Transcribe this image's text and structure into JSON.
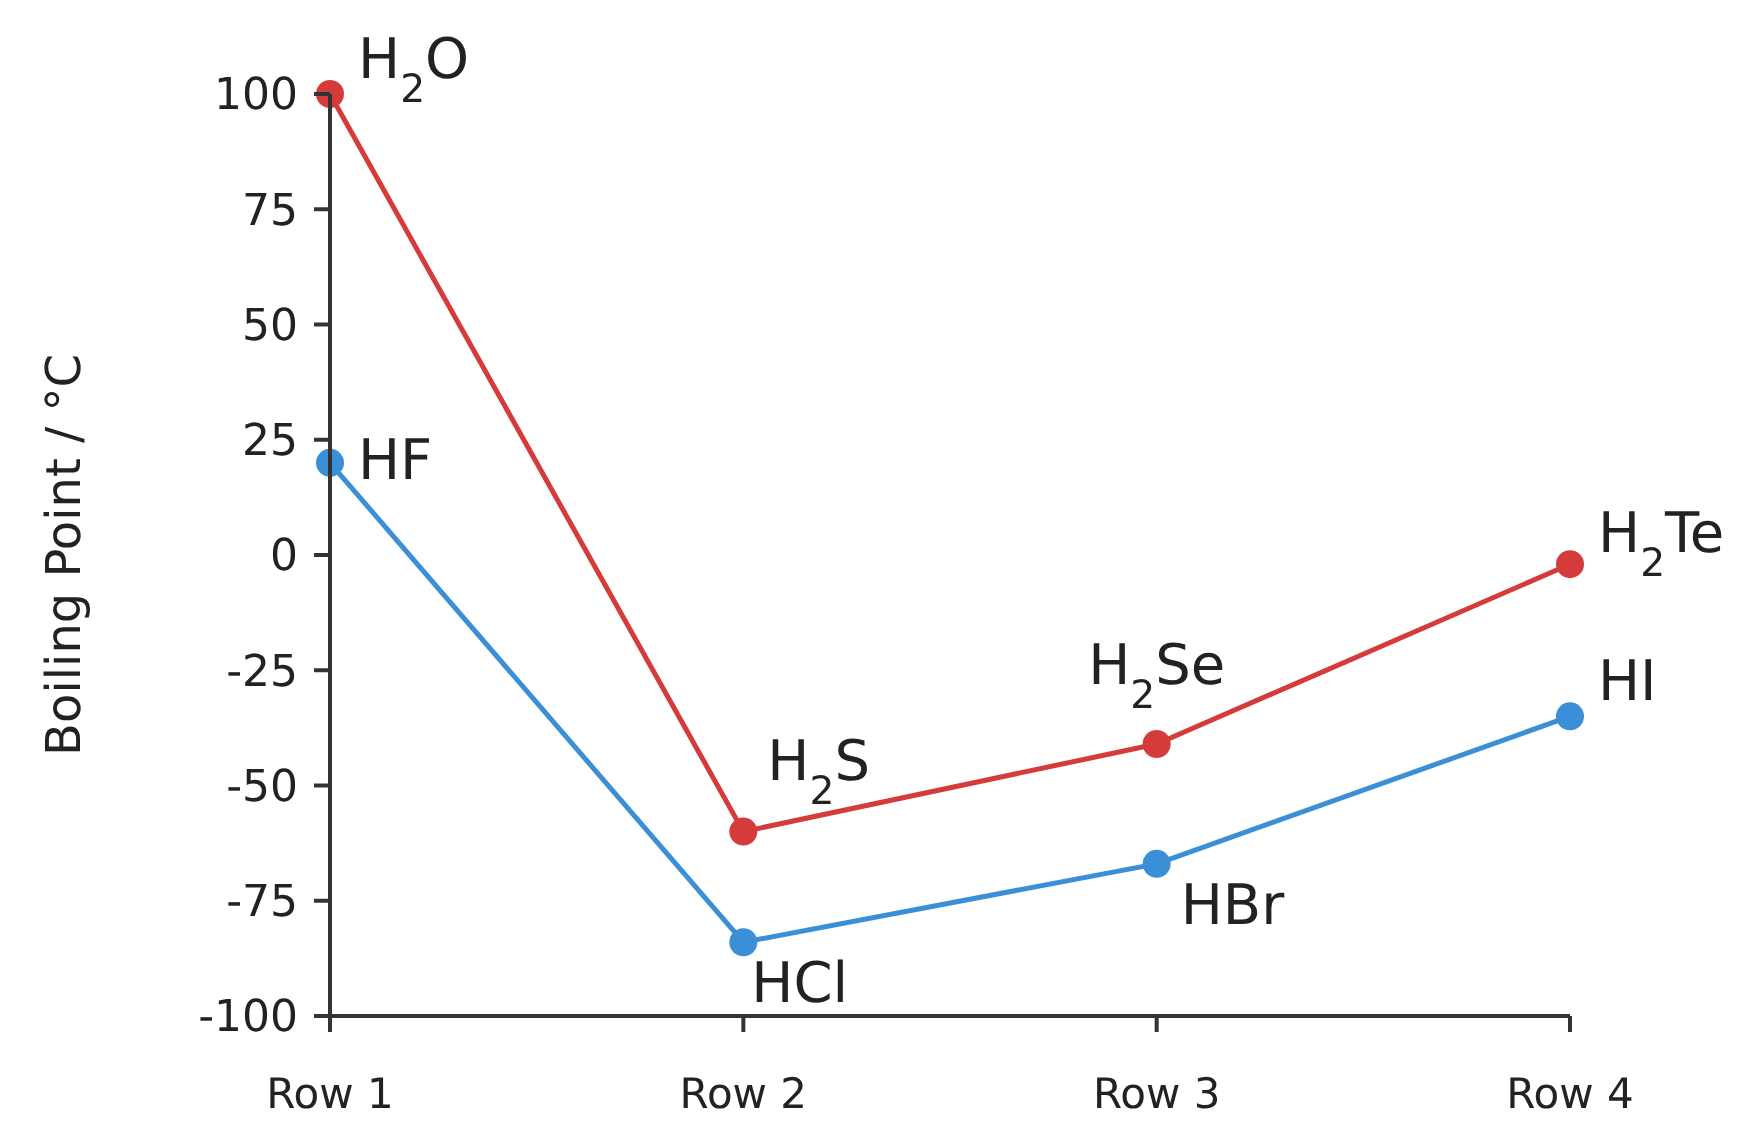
{
  "chart_data": {
    "type": "line",
    "ylabel": "Boiling Point  / °C",
    "categories": [
      "Row 1",
      "Row 2",
      "Row 3",
      "Row 4"
    ],
    "series": [
      {
        "color": "#d63b3b",
        "values": [
          100,
          -60,
          -41,
          -2
        ]
      },
      {
        "color": "#3a8fd6",
        "values": [
          20,
          -84,
          -67,
          -35
        ]
      }
    ],
    "ylim": [
      -100,
      100
    ],
    "yticks": [
      -100,
      -75,
      -50,
      -25,
      0,
      25,
      50,
      75,
      100
    ],
    "grid": false,
    "marker": "circle",
    "line_style": "solid",
    "annotations": [
      {
        "text": "H$_{2}$O",
        "x": "Row 1",
        "y": 100
      },
      {
        "text": "HF",
        "x": "Row 1",
        "y": 20
      },
      {
        "text": "H$_{2}$S",
        "x": "Row 2",
        "y": -60
      },
      {
        "text": "HCl",
        "x": "Row 2",
        "y": -84
      },
      {
        "text": "H$_{2}$Se",
        "x": "Row 3",
        "y": -41
      },
      {
        "text": "HBr",
        "x": "Row 3",
        "y": -67
      },
      {
        "text": "H$_{2}$Te",
        "x": "Row 4",
        "y": -2
      },
      {
        "text": "HI",
        "x": "Row 4",
        "y": -35
      }
    ]
  }
}
